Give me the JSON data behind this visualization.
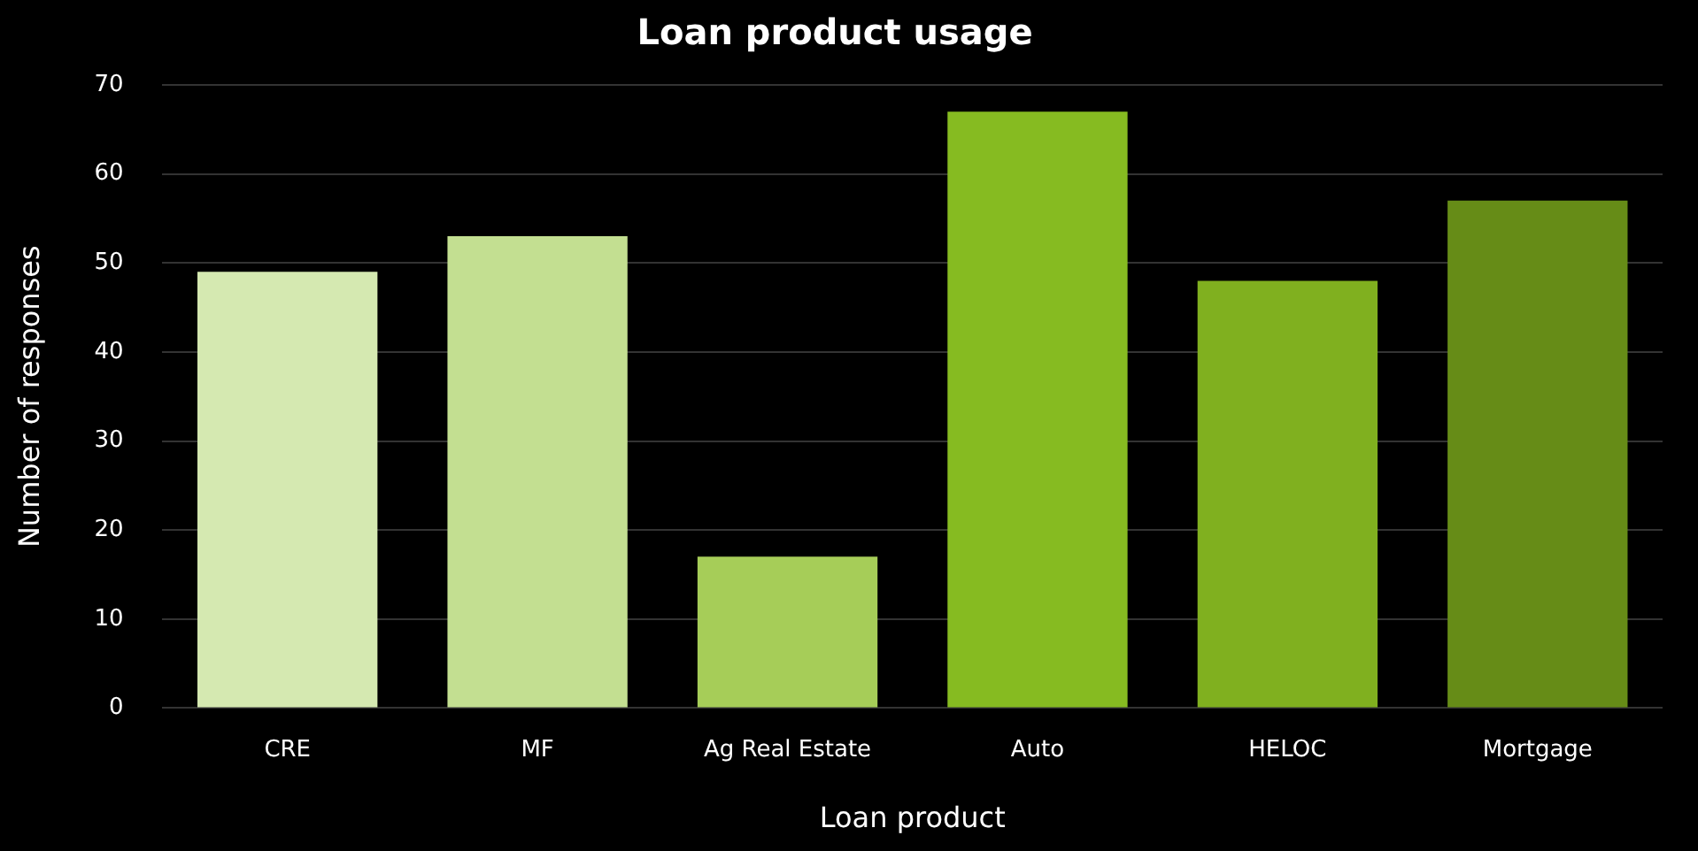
{
  "chart_data": {
    "type": "bar",
    "title": "Loan product usage",
    "xlabel": "Loan product",
    "ylabel": "Number of responses",
    "categories": [
      "CRE",
      "MF",
      "Ag Real Estate",
      "Auto",
      "HELOC",
      "Mortgage"
    ],
    "values": [
      49,
      53,
      17,
      67,
      48,
      57
    ],
    "colors": [
      "#d5e9b1",
      "#c3df91",
      "#a6cd58",
      "#86bb21",
      "#80b01f",
      "#668c17"
    ],
    "ylim": [
      0,
      70
    ],
    "yticks": [
      0,
      10,
      20,
      30,
      40,
      50,
      60,
      70
    ],
    "grid": "y",
    "legend": false
  }
}
